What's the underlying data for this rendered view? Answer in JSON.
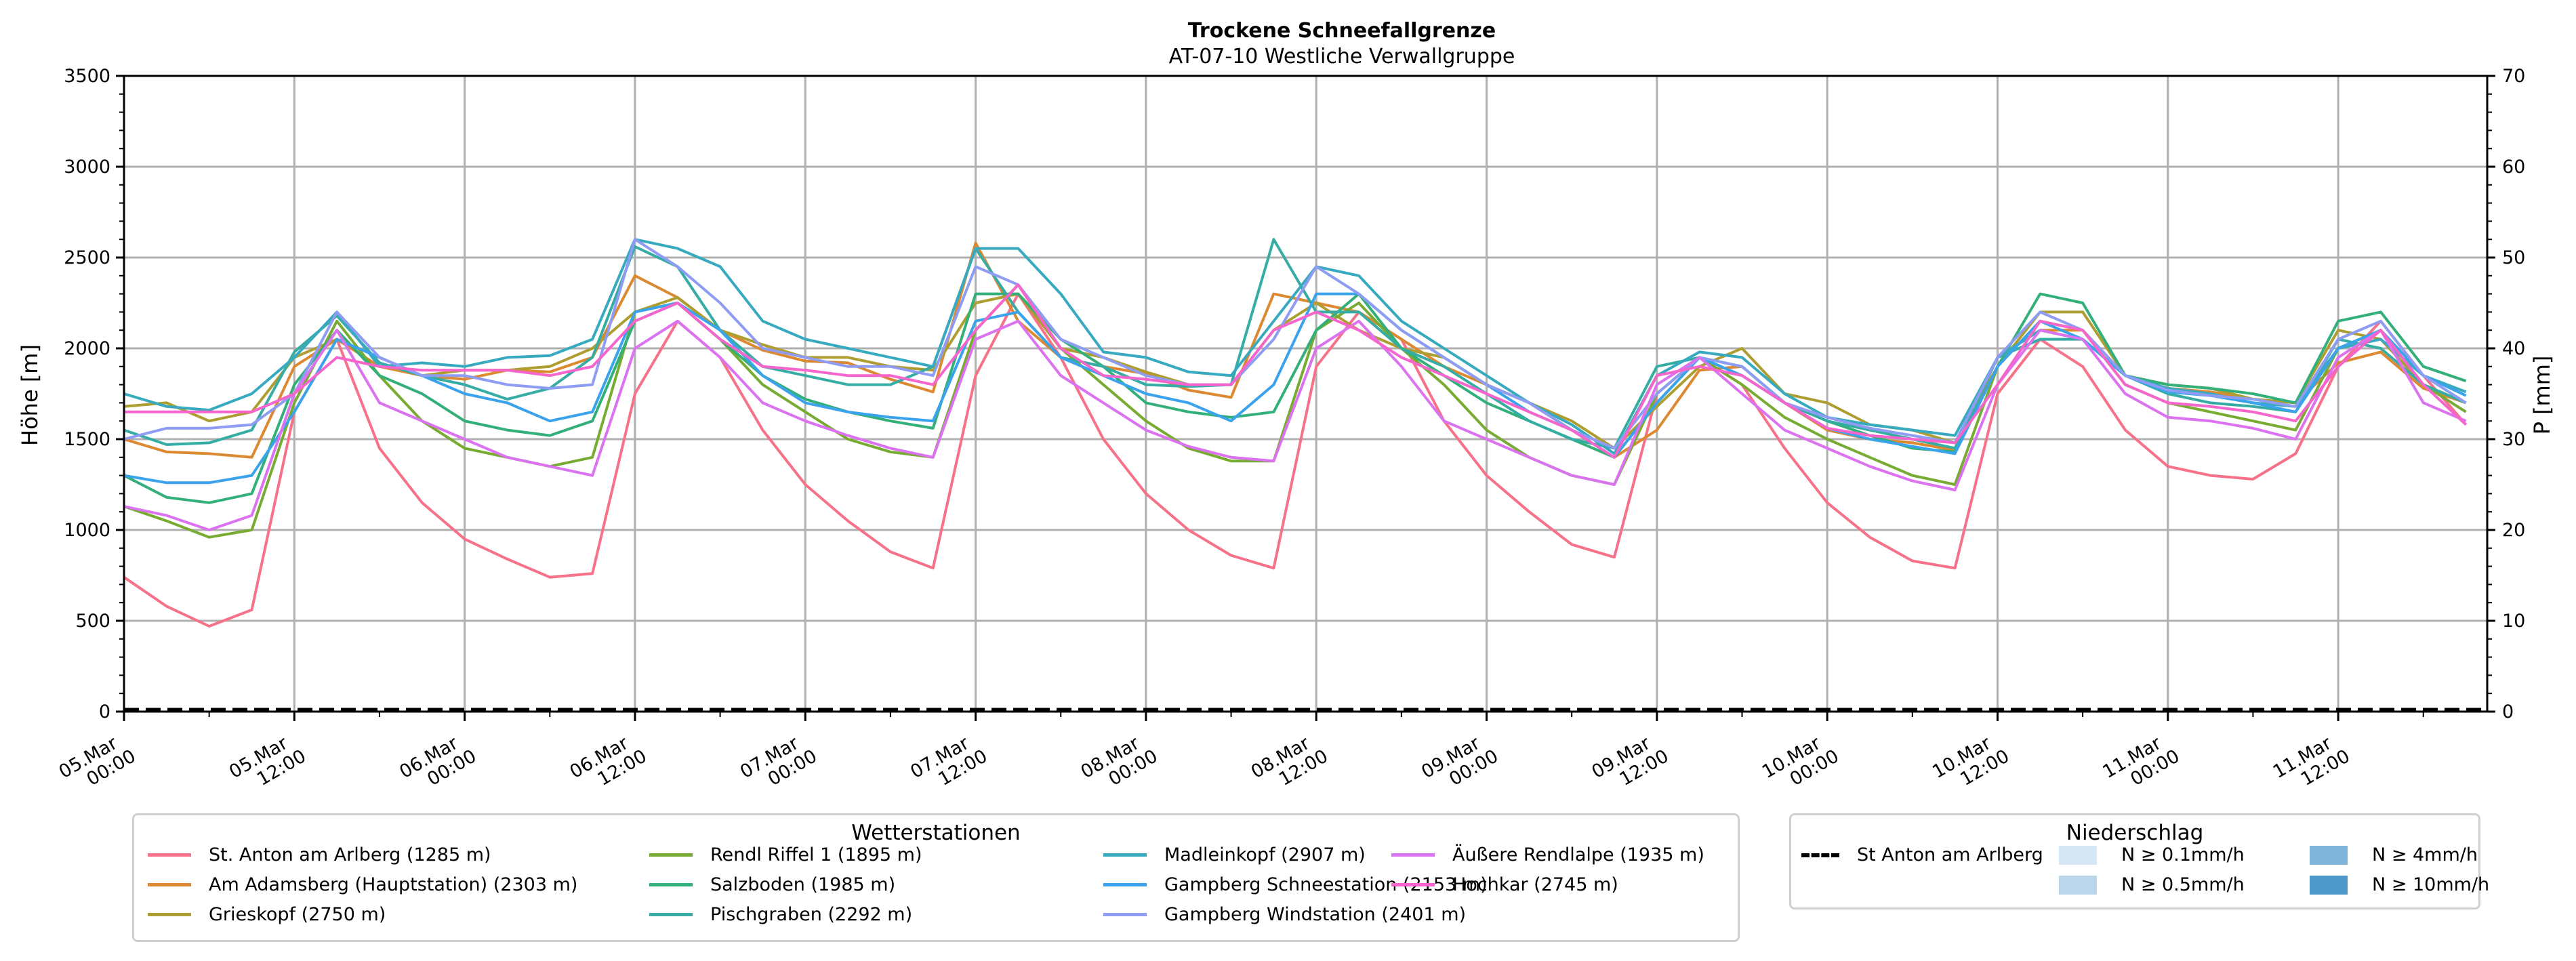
{
  "chart_data": {
    "type": "line",
    "title": "Trockene Schneefallgrenze",
    "subtitle": "AT-07-10 Westliche Verwallgruppe",
    "ylabel": "Höhe [m]",
    "y2label": "P [mm]",
    "ylim": [
      0,
      3500
    ],
    "y2lim": [
      0,
      70
    ],
    "yticks": [
      "0",
      "500",
      "1000",
      "1500",
      "2000",
      "2500",
      "3000",
      "3500"
    ],
    "y2ticks": [
      "0",
      "10",
      "20",
      "30",
      "40",
      "50",
      "60",
      "70"
    ],
    "x_unit": "hours since 05.Mar 00:00 (3-hourly samples)",
    "x_range_hours": [
      0,
      166.5
    ],
    "xticks": [
      {
        "h": 0,
        "label": "05.Mar\n00:00"
      },
      {
        "h": 12,
        "label": "05.Mar\n12:00"
      },
      {
        "h": 24,
        "label": "06.Mar\n00:00"
      },
      {
        "h": 36,
        "label": "06.Mar\n12:00"
      },
      {
        "h": 48,
        "label": "07.Mar\n00:00"
      },
      {
        "h": 60,
        "label": "07.Mar\n12:00"
      },
      {
        "h": 72,
        "label": "08.Mar\n00:00"
      },
      {
        "h": 84,
        "label": "08.Mar\n12:00"
      },
      {
        "h": 96,
        "label": "09.Mar\n00:00"
      },
      {
        "h": 108,
        "label": "09.Mar\n12:00"
      },
      {
        "h": 120,
        "label": "10.Mar\n00:00"
      },
      {
        "h": 132,
        "label": "10.Mar\n12:00"
      },
      {
        "h": 144,
        "label": "11.Mar\n00:00"
      },
      {
        "h": 156,
        "label": "11.Mar\n12:00"
      }
    ],
    "grid": true,
    "x": [
      0,
      3,
      6,
      9,
      12,
      15,
      18,
      21,
      24,
      27,
      30,
      33,
      36,
      39,
      42,
      45,
      48,
      51,
      54,
      57,
      60,
      63,
      66,
      69,
      72,
      75,
      78,
      81,
      84,
      87,
      90,
      93,
      96,
      99,
      102,
      105,
      108,
      111,
      114,
      117,
      120,
      123,
      126,
      129,
      132,
      135,
      138,
      141,
      144,
      147,
      150,
      153,
      156,
      159,
      162,
      165
    ],
    "series": [
      {
        "name": "St. Anton am Arlberg (1285 m)",
        "color": "#f77189",
        "values": [
          740,
          580,
          470,
          560,
          1650,
          2050,
          1450,
          1150,
          950,
          840,
          740,
          760,
          1750,
          2150,
          1950,
          1550,
          1250,
          1050,
          880,
          790,
          1850,
          2300,
          1950,
          1500,
          1200,
          1000,
          860,
          790,
          1900,
          2200,
          2050,
          1600,
          1300,
          1100,
          920,
          850,
          1750,
          1950,
          1800,
          1450,
          1150,
          960,
          830,
          790,
          1750,
          2050,
          1900,
          1550,
          1350,
          1300,
          1280,
          1420,
          1900,
          2150,
          1850,
          1580
        ]
      },
      {
        "name": "Am Adamsberg (Hauptstation) (2303 m)",
        "color": "#dc8932",
        "values": [
          1500,
          1430,
          1420,
          1400,
          1900,
          2050,
          1900,
          1850,
          1830,
          1880,
          1870,
          1950,
          2400,
          2280,
          2100,
          1990,
          1930,
          1920,
          1830,
          1760,
          2580,
          2150,
          1950,
          1900,
          1860,
          1770,
          1730,
          2300,
          2250,
          2200,
          2050,
          1900,
          1800,
          1700,
          1550,
          1400,
          1550,
          1880,
          1900,
          1700,
          1550,
          1500,
          1480,
          1440,
          1950,
          2100,
          2100,
          1850,
          1780,
          1760,
          1720,
          1700,
          1920,
          1980,
          1780,
          1700
        ]
      },
      {
        "name": "Grieskopf (2750 m)",
        "color": "#ae9d31",
        "values": [
          1680,
          1700,
          1600,
          1650,
          1950,
          2050,
          1950,
          1850,
          1880,
          1880,
          1900,
          2000,
          2200,
          2280,
          2100,
          2020,
          1950,
          1950,
          1900,
          1880,
          2250,
          2300,
          2000,
          1950,
          1870,
          1800,
          1800,
          2100,
          2250,
          2100,
          2000,
          1950,
          1800,
          1700,
          1600,
          1450,
          1680,
          1900,
          2000,
          1750,
          1700,
          1580,
          1550,
          1480,
          1900,
          2200,
          2200,
          1850,
          1800,
          1780,
          1720,
          1700,
          2100,
          2050,
          1800,
          1700
        ]
      },
      {
        "name": "Rendl Riffel 1 (1895 m)",
        "color": "#77ab31",
        "values": [
          1130,
          1050,
          960,
          1000,
          1700,
          2150,
          1850,
          1600,
          1450,
          1400,
          1350,
          1400,
          2200,
          2250,
          2050,
          1800,
          1650,
          1500,
          1430,
          1400,
          2100,
          2350,
          2000,
          1800,
          1600,
          1450,
          1380,
          1380,
          2100,
          2250,
          2000,
          1800,
          1550,
          1400,
          1300,
          1250,
          1750,
          1950,
          1800,
          1620,
          1500,
          1400,
          1300,
          1250,
          1900,
          2150,
          2100,
          1800,
          1700,
          1650,
          1600,
          1550,
          2000,
          2100,
          1800,
          1650
        ]
      },
      {
        "name": "Salzboden (1985 m)",
        "color": "#33b07a",
        "values": [
          1300,
          1180,
          1150,
          1200,
          1800,
          2100,
          1850,
          1750,
          1600,
          1550,
          1520,
          1600,
          2150,
          2250,
          2050,
          1850,
          1720,
          1650,
          1600,
          1560,
          2300,
          2300,
          2050,
          1900,
          1700,
          1650,
          1620,
          1650,
          2100,
          2300,
          2000,
          1850,
          1700,
          1600,
          1500,
          1400,
          1700,
          1950,
          1900,
          1700,
          1600,
          1520,
          1450,
          1430,
          1900,
          2300,
          2250,
          1850,
          1800,
          1780,
          1750,
          1700,
          2150,
          2200,
          1900,
          1820
        ]
      },
      {
        "name": "Pischgraben (2292 m)",
        "color": "#36ada4",
        "values": [
          1550,
          1470,
          1480,
          1550,
          1980,
          2180,
          1920,
          1850,
          1800,
          1720,
          1780,
          1950,
          2560,
          2450,
          2100,
          1900,
          1850,
          1800,
          1800,
          1900,
          2550,
          2200,
          1950,
          1900,
          1800,
          1790,
          1800,
          2600,
          2200,
          2200,
          2000,
          1900,
          1750,
          1600,
          1500,
          1450,
          1900,
          1950,
          1850,
          1700,
          1600,
          1550,
          1500,
          1450,
          1950,
          2050,
          2050,
          1850,
          1750,
          1700,
          1680,
          1650,
          2050,
          2000,
          1800,
          1700
        ]
      },
      {
        "name": "Madleinkopf (2907 m)",
        "color": "#38aabf",
        "values": [
          1750,
          1680,
          1660,
          1750,
          1950,
          2200,
          1900,
          1920,
          1900,
          1950,
          1960,
          2050,
          2600,
          2550,
          2450,
          2150,
          2050,
          2000,
          1950,
          1900,
          2550,
          2550,
          2300,
          1980,
          1950,
          1870,
          1850,
          2150,
          2450,
          2400,
          2150,
          2000,
          1850,
          1700,
          1580,
          1420,
          1850,
          1980,
          1950,
          1750,
          1620,
          1580,
          1550,
          1520,
          1950,
          2100,
          2050,
          1850,
          1780,
          1750,
          1700,
          1680,
          2000,
          2050,
          1850,
          1760
        ]
      },
      {
        "name": "Gampberg Schneestation (2153 m)",
        "color": "#3ba3ec",
        "values": [
          1300,
          1260,
          1260,
          1300,
          1650,
          2050,
          1950,
          1850,
          1750,
          1700,
          1600,
          1650,
          2200,
          2250,
          2100,
          1850,
          1700,
          1650,
          1620,
          1600,
          2150,
          2200,
          1950,
          1850,
          1750,
          1700,
          1600,
          1800,
          2300,
          2300,
          2100,
          1950,
          1800,
          1650,
          1550,
          1400,
          1700,
          1950,
          1850,
          1700,
          1560,
          1500,
          1460,
          1420,
          1900,
          2150,
          2050,
          1850,
          1760,
          1740,
          1700,
          1650,
          2000,
          2100,
          1850,
          1740
        ]
      },
      {
        "name": "Gampberg Windstation (2401 m)",
        "color": "#8e9cf4",
        "values": [
          1500,
          1560,
          1560,
          1580,
          1750,
          2200,
          1950,
          1850,
          1850,
          1800,
          1780,
          1800,
          2600,
          2450,
          2250,
          2000,
          1950,
          1900,
          1900,
          1850,
          2450,
          2350,
          2050,
          1950,
          1850,
          1800,
          1800,
          2050,
          2450,
          2300,
          2100,
          1950,
          1800,
          1700,
          1550,
          1450,
          1750,
          1950,
          1900,
          1700,
          1620,
          1560,
          1520,
          1480,
          1950,
          2200,
          2100,
          1850,
          1770,
          1740,
          1720,
          1680,
          2050,
          2150,
          1850,
          1700
        ]
      },
      {
        "name": "Äußere Rendlalpe (1935 m)",
        "color": "#db72f0",
        "values": [
          1130,
          1080,
          1000,
          1080,
          1750,
          2100,
          1700,
          1600,
          1500,
          1400,
          1350,
          1300,
          2000,
          2150,
          1950,
          1700,
          1600,
          1520,
          1450,
          1400,
          2050,
          2150,
          1850,
          1700,
          1550,
          1460,
          1400,
          1380,
          2000,
          2150,
          1900,
          1600,
          1500,
          1400,
          1300,
          1250,
          1800,
          1950,
          1750,
          1550,
          1450,
          1350,
          1270,
          1220,
          1800,
          2100,
          2050,
          1750,
          1620,
          1600,
          1560,
          1500,
          1950,
          2100,
          1700,
          1600
        ]
      },
      {
        "name": "Hochkar (2745 m)",
        "color": "#f565cc",
        "values": [
          1650,
          1650,
          1650,
          1650,
          1750,
          1950,
          1900,
          1880,
          1880,
          1880,
          1850,
          1900,
          2150,
          2250,
          2050,
          1900,
          1880,
          1850,
          1850,
          1800,
          2100,
          2350,
          2000,
          1850,
          1830,
          1800,
          1800,
          2100,
          2200,
          2100,
          1950,
          1850,
          1750,
          1650,
          1550,
          1400,
          1850,
          1900,
          1850,
          1700,
          1560,
          1520,
          1500,
          1480,
          1800,
          2150,
          2100,
          1800,
          1700,
          1680,
          1650,
          1600,
          1900,
          2100,
          1800,
          1580
        ]
      }
    ],
    "precip_line": {
      "name": "St Anton am Arlberg",
      "values_mm": "0 throughout",
      "style": "dashed black"
    },
    "legend_stations": {
      "title": "Wetterstationen",
      "placement": "bottom-center"
    },
    "legend_precip": {
      "title": "Niederschlag",
      "placement": "bottom-right",
      "items": [
        {
          "label": "St Anton am Arlberg",
          "kind": "dashed-line",
          "color": "#000000"
        },
        {
          "label": "N ≥ 0.1mm/h",
          "kind": "patch",
          "color": "#d6e6f4"
        },
        {
          "label": "N ≥ 0.5mm/h",
          "kind": "patch",
          "color": "#b9d6ea"
        },
        {
          "label": "N ≥ 4mm/h",
          "kind": "patch",
          "color": "#7fb6d9"
        },
        {
          "label": "N ≥ 10mm/h",
          "kind": "patch",
          "color": "#4d97c9"
        }
      ]
    }
  }
}
